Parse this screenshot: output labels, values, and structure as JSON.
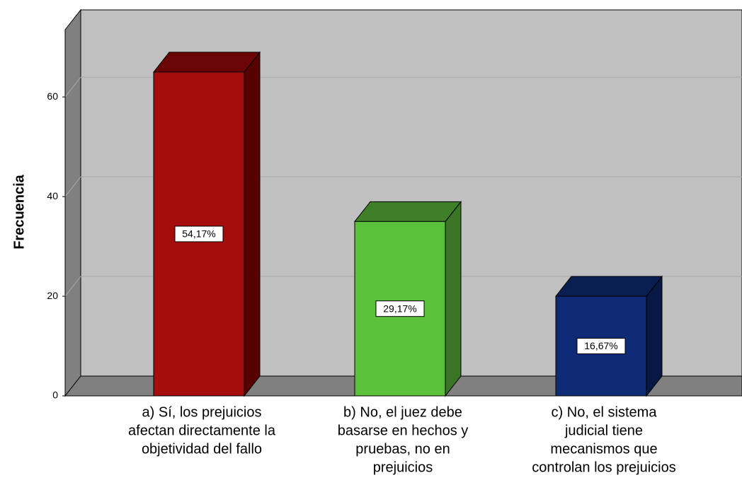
{
  "chart_data": {
    "type": "bar3d",
    "y_label": "Frecuencia",
    "categories": [
      [
        "a) Sí, los prejuicios",
        "afectan directamente la",
        "objetividad del fallo"
      ],
      [
        "b) No, el juez debe",
        "basarse en hechos y",
        "pruebas, no en",
        "prejuicios"
      ],
      [
        "c) No, el sistema",
        "judicial tiene",
        "mecanismos que",
        "controlan los prejuicios"
      ]
    ],
    "values": [
      65,
      35,
      20
    ],
    "percentages": [
      54.17,
      29.17,
      16.67
    ],
    "percent_labels": [
      "54,17%",
      "29,17%",
      "16,67%"
    ],
    "colors": [
      {
        "front": "#a50c0c",
        "top": "#6b0505",
        "side": "#560000"
      },
      {
        "front": "#5cc13a",
        "top": "#3f7f28",
        "side": "#3a7525"
      },
      {
        "front": "#0f2b75",
        "top": "#0b1e52",
        "side": "#081845"
      }
    ],
    "ylim": [
      0,
      73.5
    ],
    "yticks": [
      0,
      20,
      40,
      60
    ],
    "grid": true
  }
}
